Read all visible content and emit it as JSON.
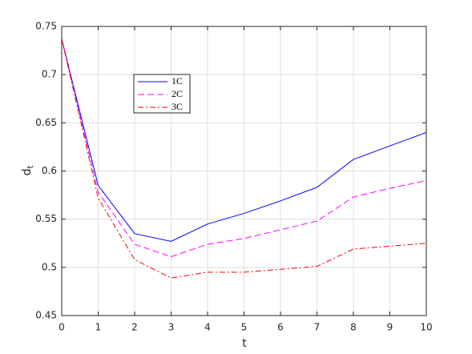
{
  "chart_data": {
    "type": "line",
    "xlabel": "t",
    "ylabel": {
      "main": "d",
      "sub": "t"
    },
    "x": [
      0,
      1,
      2,
      3,
      4,
      5,
      6,
      7,
      8,
      9,
      10
    ],
    "series": [
      {
        "name": "1C",
        "color": "#0000ff",
        "dash": "solid",
        "values": [
          0.737,
          0.585,
          0.535,
          0.527,
          0.545,
          0.556,
          0.569,
          0.583,
          0.612,
          0.626,
          0.64
        ]
      },
      {
        "name": "2C",
        "color": "#ff00ff",
        "dash": "dashed",
        "values": [
          0.737,
          0.578,
          0.524,
          0.511,
          0.524,
          0.53,
          0.539,
          0.548,
          0.573,
          0.582,
          0.59
        ]
      },
      {
        "name": "3C",
        "color": "#ff0000",
        "dash": "dashdot",
        "values": [
          0.737,
          0.572,
          0.508,
          0.489,
          0.495,
          0.495,
          0.498,
          0.501,
          0.519,
          0.522,
          0.525
        ]
      }
    ],
    "xlim": [
      0,
      10
    ],
    "xticks": [
      0,
      1,
      2,
      3,
      4,
      5,
      6,
      7,
      8,
      9,
      10
    ],
    "ylim": [
      0.45,
      0.75
    ],
    "yticks": [
      0.45,
      0.5,
      0.55,
      0.6,
      0.65,
      0.7,
      0.75
    ],
    "grid": true,
    "legend": "upper left"
  }
}
